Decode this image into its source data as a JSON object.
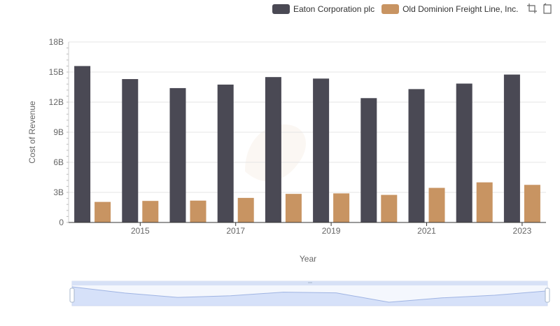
{
  "legend": {
    "items": [
      {
        "label": "Eaton Corporation plc",
        "color": "#4a4954"
      },
      {
        "label": "Old Dominion Freight Line, Inc.",
        "color": "#c89462"
      }
    ]
  },
  "toolbox": {
    "icons": [
      "zoom-icon",
      "restore-zoom-icon"
    ]
  },
  "chart_data": {
    "type": "bar",
    "xlabel": "Year",
    "ylabel": "Cost of Revenue",
    "categories": [
      "2014",
      "2015",
      "2016",
      "2017",
      "2018",
      "2019",
      "2020",
      "2021",
      "2022",
      "2023"
    ],
    "x_tick_labels": [
      "2015",
      "2017",
      "2019",
      "2021",
      "2023"
    ],
    "y_tick_labels": [
      "0",
      "3B",
      "6B",
      "9B",
      "12B",
      "15B",
      "18B"
    ],
    "ylim": [
      0,
      18000000000
    ],
    "grid": true,
    "legend_position": "top-right",
    "series": [
      {
        "name": "Eaton Corporation plc",
        "color": "#4a4954",
        "values": [
          15600000000,
          14300000000,
          13400000000,
          13750000000,
          14500000000,
          14350000000,
          12400000000,
          13300000000,
          13850000000,
          14750000000
        ]
      },
      {
        "name": "Old Dominion Freight Line, Inc.",
        "color": "#c89462",
        "values": [
          2050000000,
          2150000000,
          2180000000,
          2450000000,
          2850000000,
          2900000000,
          2750000000,
          3450000000,
          4000000000,
          3750000000
        ]
      }
    ],
    "data_zoom": {
      "start": 0,
      "end": 100
    }
  }
}
